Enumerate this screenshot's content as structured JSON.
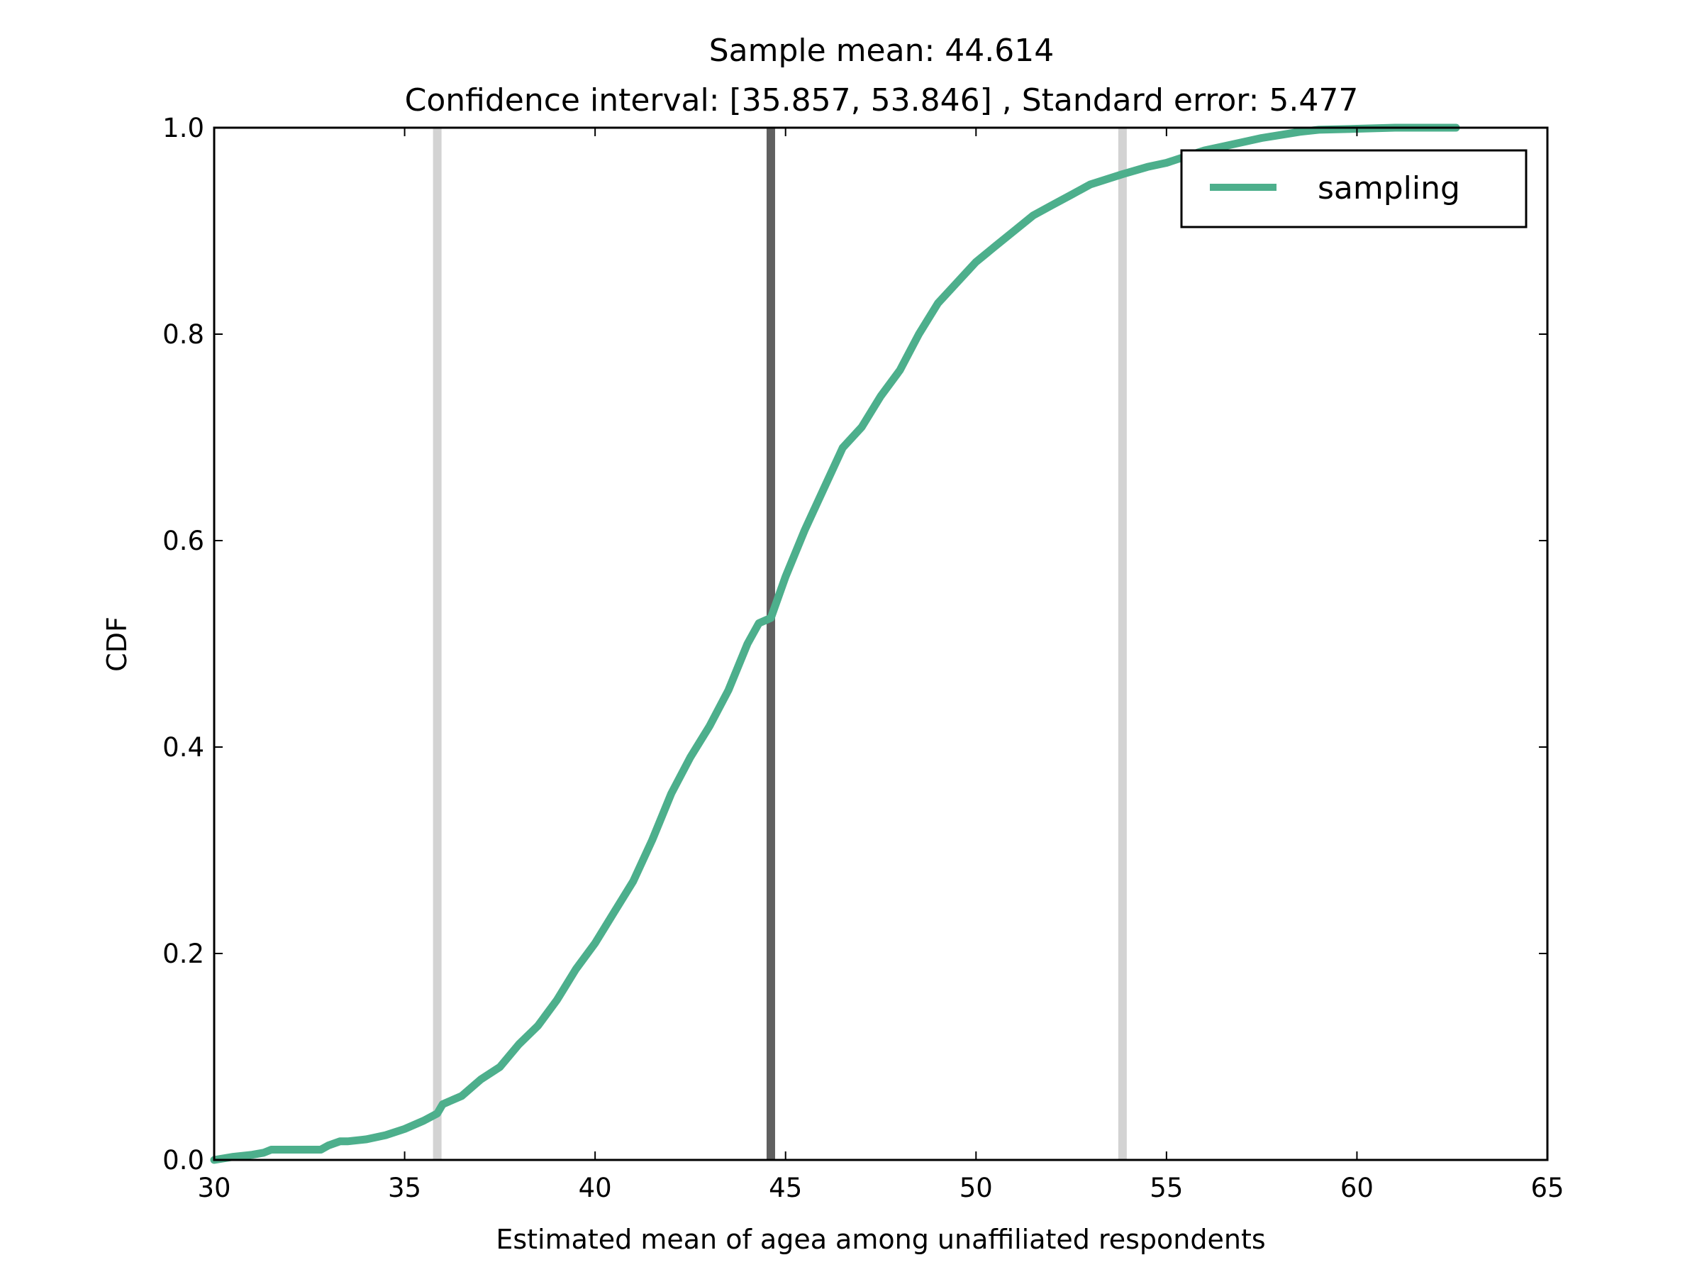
{
  "chart_data": {
    "type": "line",
    "title_lines": [
      "Sample mean: 44.614",
      "Confidence interval: [35.857, 53.846] , Standard error: 5.477"
    ],
    "xlabel": "Estimated mean of agea among unaffiliated respondents",
    "ylabel": "CDF",
    "xlim": [
      30,
      65
    ],
    "ylim": [
      0.0,
      1.0
    ],
    "xticks": [
      30,
      35,
      40,
      45,
      50,
      55,
      60,
      65
    ],
    "yticks": [
      0.0,
      0.2,
      0.4,
      0.6,
      0.8,
      1.0
    ],
    "xtick_labels": [
      "30",
      "35",
      "40",
      "45",
      "50",
      "55",
      "60",
      "65"
    ],
    "ytick_labels": [
      "0.0",
      "0.2",
      "0.4",
      "0.6",
      "0.8",
      "1.0"
    ],
    "grid": false,
    "legend_position": "top-right",
    "vertical_lines": [
      {
        "x": 35.857,
        "color": "#d3d3d3",
        "role": "ci-lower"
      },
      {
        "x": 44.614,
        "color": "#606060",
        "role": "mean"
      },
      {
        "x": 53.846,
        "color": "#d3d3d3",
        "role": "ci-upper"
      }
    ],
    "series": [
      {
        "name": "sampling",
        "color": "#4daf8c",
        "x": [
          30.0,
          30.5,
          31.0,
          31.3,
          31.5,
          32.0,
          32.5,
          32.8,
          33.0,
          33.3,
          33.5,
          34.0,
          34.5,
          35.0,
          35.5,
          35.857,
          36.0,
          36.5,
          37.0,
          37.5,
          38.0,
          38.5,
          39.0,
          39.5,
          40.0,
          40.5,
          41.0,
          41.5,
          42.0,
          42.5,
          43.0,
          43.5,
          44.0,
          44.3,
          44.614,
          45.0,
          45.5,
          46.0,
          46.5,
          47.0,
          47.5,
          48.0,
          48.5,
          49.0,
          49.5,
          50.0,
          50.5,
          51.0,
          51.5,
          52.0,
          52.5,
          53.0,
          53.846,
          54.5,
          55.0,
          55.5,
          56.0,
          56.5,
          57.0,
          57.5,
          58.0,
          58.5,
          59.0,
          60.0,
          61.0,
          62.0,
          62.6
        ],
        "y": [
          0.0,
          0.003,
          0.005,
          0.007,
          0.01,
          0.01,
          0.01,
          0.01,
          0.014,
          0.018,
          0.018,
          0.02,
          0.024,
          0.03,
          0.038,
          0.045,
          0.054,
          0.062,
          0.078,
          0.09,
          0.112,
          0.13,
          0.155,
          0.185,
          0.21,
          0.24,
          0.27,
          0.31,
          0.355,
          0.39,
          0.42,
          0.455,
          0.5,
          0.52,
          0.525,
          0.565,
          0.61,
          0.65,
          0.69,
          0.71,
          0.74,
          0.765,
          0.8,
          0.83,
          0.85,
          0.87,
          0.885,
          0.9,
          0.915,
          0.925,
          0.935,
          0.945,
          0.955,
          0.962,
          0.966,
          0.972,
          0.978,
          0.982,
          0.986,
          0.99,
          0.993,
          0.996,
          0.998,
          0.999,
          1.0,
          1.0,
          1.0
        ]
      }
    ]
  }
}
